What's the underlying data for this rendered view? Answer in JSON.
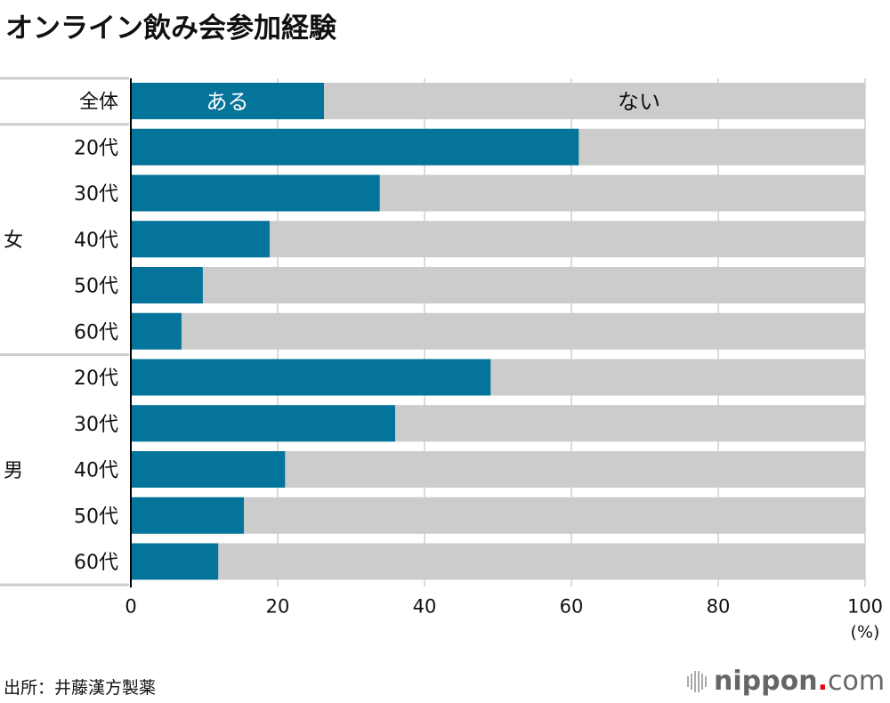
{
  "title": "オンライン飲み会参加経験",
  "source": "出所：井藤漢方製薬",
  "logo": {
    "name": "nippon",
    "dot": ".",
    "tld": "com"
  },
  "chart_data": {
    "type": "bar",
    "orientation": "horizontal",
    "stacked": true,
    "title": "オンライン飲み会参加経験",
    "unit_label": "(%)",
    "xlim": [
      0,
      100
    ],
    "xticks": [
      "0",
      "20",
      "40",
      "60",
      "80",
      "100"
    ],
    "grid": true,
    "groups": [
      {
        "label": "",
        "rows": [
          {
            "category": "全体",
            "value": 26.3
          }
        ]
      },
      {
        "label": "女",
        "rows": [
          {
            "category": "20代",
            "value": 61.0
          },
          {
            "category": "30代",
            "value": 33.9
          },
          {
            "category": "40代",
            "value": 18.9
          },
          {
            "category": "50代",
            "value": 9.8
          },
          {
            "category": "60代",
            "value": 6.9
          }
        ]
      },
      {
        "label": "男",
        "rows": [
          {
            "category": "20代",
            "value": 49.0
          },
          {
            "category": "30代",
            "value": 36.0
          },
          {
            "category": "40代",
            "value": 21.0
          },
          {
            "category": "50代",
            "value": 15.4
          },
          {
            "category": "60代",
            "value": 11.9
          }
        ]
      }
    ],
    "series": [
      {
        "name": "ある",
        "color": "#05749b"
      },
      {
        "name": "ない",
        "color": "#cccccc"
      }
    ]
  }
}
